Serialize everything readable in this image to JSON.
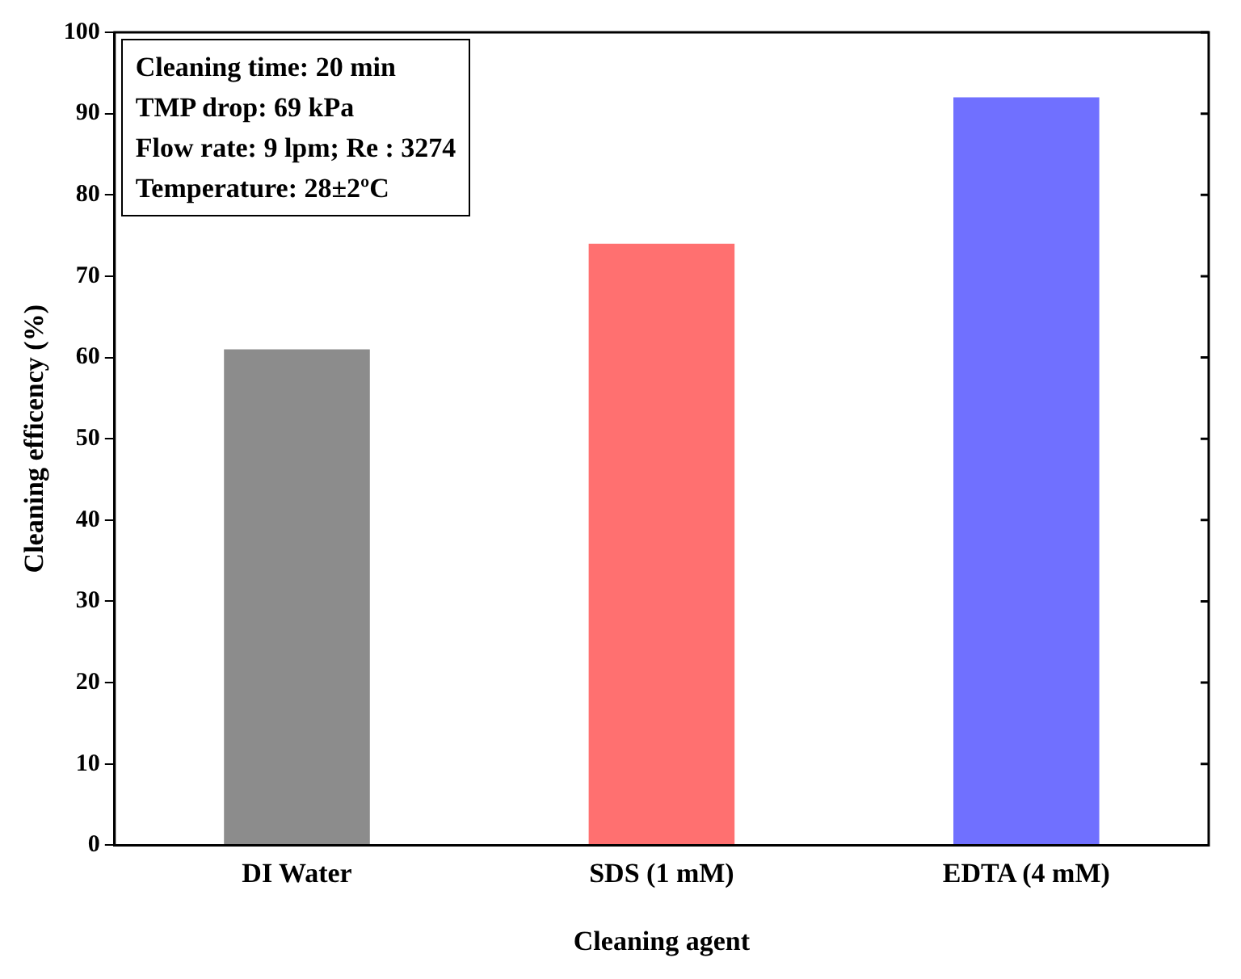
{
  "chart_data": {
    "type": "bar",
    "xlabel": "Cleaning agent",
    "ylabel": "Cleaning efficency (%)",
    "categories": [
      "DI Water",
      "SDS (1 mM)",
      "EDTA (4 mM)"
    ],
    "values": [
      61,
      74,
      92
    ],
    "colors": [
      "#8c8c8c",
      "#ff7070",
      "#7070ff"
    ],
    "ylim": [
      0,
      100
    ],
    "yticks": [
      0,
      10,
      20,
      30,
      40,
      50,
      60,
      70,
      80,
      90,
      100
    ],
    "grid": false,
    "legend": false,
    "annotations": [
      "Cleaning time: 20 min",
      "TMP drop: 69 kPa",
      "Flow rate: 9 lpm; Re : 3274",
      "Temperature: 28±2ºC"
    ]
  }
}
